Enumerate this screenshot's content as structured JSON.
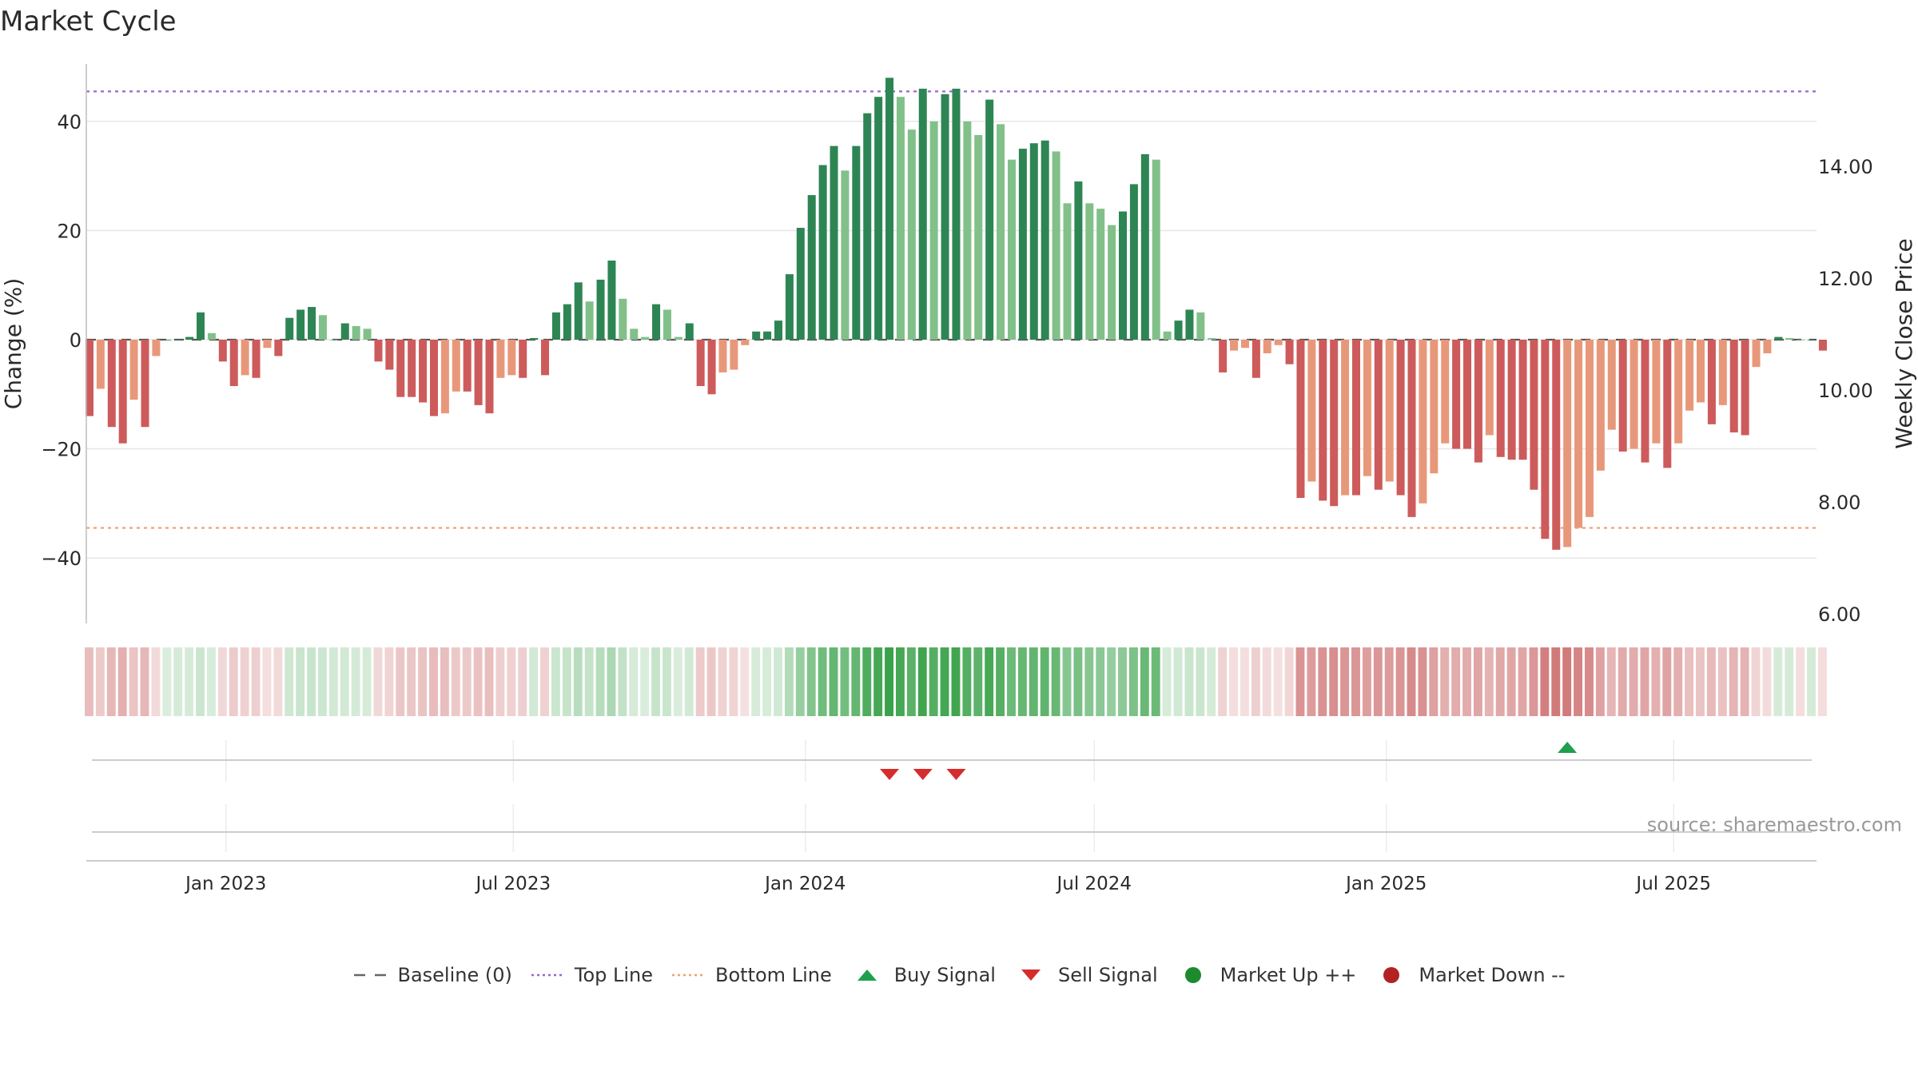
{
  "chart_data": {
    "type": "bar",
    "title": "Market Cycle",
    "ylabel": "Change (%)",
    "y2label": "Weekly Close Price",
    "ylim": [
      -52,
      52
    ],
    "y2lim": [
      6.0,
      16.0
    ],
    "y_ticks": [
      {
        "value": 40,
        "label": "40"
      },
      {
        "value": 20,
        "label": "20"
      },
      {
        "value": 0,
        "label": "0"
      },
      {
        "value": -20,
        "label": "−20"
      },
      {
        "value": -40,
        "label": "−40"
      }
    ],
    "y2_ticks": [
      {
        "value": 14.0,
        "label": "14.00"
      },
      {
        "value": 12.0,
        "label": "12.00"
      },
      {
        "value": 10.0,
        "label": "10.00"
      },
      {
        "value": 8.0,
        "label": "8.00"
      },
      {
        "value": 6.0,
        "label": "6.00"
      }
    ],
    "x_range": [
      "2022-10-05",
      "2025-09-29"
    ],
    "x_ticks": [
      {
        "date": "2023-01-01",
        "label": "Jan 2023"
      },
      {
        "date": "2023-07-01",
        "label": "Jul 2023"
      },
      {
        "date": "2024-01-01",
        "label": "Jan 2024"
      },
      {
        "date": "2024-07-01",
        "label": "Jul 2024"
      },
      {
        "date": "2025-01-01",
        "label": "Jan 2025"
      },
      {
        "date": "2025-07-01",
        "label": "Jul 2025"
      }
    ],
    "grid": true,
    "first_week": "2022-10-07",
    "values": [
      -14,
      -9,
      -16,
      -19,
      -11,
      -16,
      -3,
      0,
      0,
      0.5,
      5,
      1.2,
      -4,
      -8.5,
      -6.5,
      -7,
      -1.5,
      -3,
      4,
      5.5,
      6,
      4.5,
      0,
      3,
      2.5,
      2,
      -4,
      -5.5,
      -10.5,
      -10.5,
      -11.5,
      -14,
      -13.5,
      -9.5,
      -9.5,
      -12,
      -13.5,
      -7,
      -6.5,
      -7,
      0.3,
      -6.5,
      5,
      6.5,
      10.5,
      7,
      11,
      14.5,
      7.5,
      2,
      0.5,
      6.5,
      5.5,
      0.5,
      3,
      -8.5,
      -10,
      -6,
      -5.5,
      -1,
      1.5,
      1.5,
      3.5,
      12,
      20.5,
      26.5,
      32,
      35.5,
      31,
      35.5,
      41.5,
      44.5,
      48,
      44.5,
      38.5,
      46,
      40,
      45,
      46,
      40,
      37.5,
      44,
      39.5,
      33,
      35,
      36,
      36.5,
      34.5,
      25,
      29,
      25,
      24,
      21,
      23.5,
      28.5,
      34,
      33,
      1.5,
      3.5,
      5.5,
      5,
      0.3,
      -6,
      -2,
      -1.5,
      -7,
      -2.5,
      -1,
      -4.5,
      -29,
      -26,
      -29.5,
      -30.5,
      -28.5,
      -28.5,
      -25,
      -27.5,
      -26,
      -28.5,
      -32.5,
      -30,
      -24.5,
      -19,
      -20,
      -20,
      -22.5,
      -17.5,
      -21.5,
      -22,
      -22,
      -27.5,
      -36.5,
      -38.5,
      -38,
      -34.5,
      -32.5,
      -24,
      -16.5,
      -20.5,
      -20,
      -22.5,
      -19,
      -23.5,
      -19,
      -13,
      -11.5,
      -15.5,
      -12,
      -17,
      -17.5,
      -5,
      -2.5,
      0.5,
      0.3,
      0,
      0,
      -2
    ],
    "heat_values": [
      -14,
      -9,
      -16,
      -19,
      -11,
      -16,
      -3,
      0,
      2,
      2,
      5,
      1.2,
      -4,
      -8.5,
      -6.5,
      -7,
      -1.5,
      -3,
      4,
      5.5,
      6,
      4.5,
      3,
      3,
      2.5,
      2,
      -4,
      -5.5,
      -10.5,
      -10.5,
      -11.5,
      -14,
      -13.5,
      -9.5,
      -9.5,
      -12,
      -13.5,
      -7,
      -6.5,
      -7,
      3,
      -6.5,
      5,
      6.5,
      10.5,
      7,
      11,
      14.5,
      7.5,
      2,
      0.5,
      6.5,
      5.5,
      0.5,
      3,
      -8.5,
      -10,
      -6,
      -5.5,
      -1,
      1.5,
      1.5,
      3.5,
      12,
      20.5,
      26.5,
      32,
      35.5,
      31,
      35.5,
      41.5,
      44.5,
      48,
      44.5,
      38.5,
      46,
      40,
      45,
      46,
      40,
      37.5,
      44,
      39.5,
      33,
      35,
      36,
      36.5,
      34.5,
      25,
      29,
      25,
      24,
      21,
      23.5,
      28.5,
      34,
      33,
      1.5,
      3.5,
      5.5,
      5,
      2,
      -6,
      -2,
      -1.5,
      -7,
      -2.5,
      -1,
      -4.5,
      -29,
      -26,
      -29.5,
      -30.5,
      -28.5,
      -28.5,
      -25,
      -27.5,
      -26,
      -28.5,
      -32.5,
      -30,
      -24.5,
      -19,
      -20,
      -20,
      -22.5,
      -17.5,
      -21.5,
      -22,
      -22,
      -27.5,
      -36.5,
      -38.5,
      -38,
      -34.5,
      -32.5,
      -24,
      -16.5,
      -20.5,
      -20,
      -22.5,
      -19,
      -23.5,
      -19,
      -13,
      -11.5,
      -15.5,
      -12,
      -17,
      -17.5,
      -5,
      -2.5,
      2,
      2,
      -2,
      2,
      -2
    ],
    "reference_lines": [
      {
        "name": "Baseline (0)",
        "value": 0,
        "color": "#555555",
        "style": "dashed"
      },
      {
        "name": "Top Line",
        "value": 45.5,
        "color": "#9966cc",
        "style": "dotted"
      },
      {
        "name": "Bottom Line",
        "value": -34.5,
        "color": "#f0a070",
        "style": "dotted"
      }
    ],
    "buy_signals": [
      "2025-04-25"
    ],
    "sell_signals": [
      "2024-02-23",
      "2024-03-15",
      "2024-04-05"
    ],
    "market_up_markers": [],
    "market_down_markers": [],
    "colors": {
      "up_dark": "#2e8554",
      "up_light": "#82c08a",
      "down_dark": "#cd5b5b",
      "down_light": "#e8987a",
      "heat_up": "#3aa24a",
      "heat_down": "#c86060",
      "buy": "#1fa04e",
      "sell": "#d62c2c",
      "market_up": "#1e8a2e",
      "market_down": "#b22222"
    },
    "source": "source: sharemaestro.com",
    "legend": [
      {
        "label": "Baseline (0)",
        "symbol": "dash-line",
        "color": "#666666"
      },
      {
        "label": "Top Line",
        "symbol": "dot-line",
        "color": "#9966cc"
      },
      {
        "label": "Bottom Line",
        "symbol": "dot-line",
        "color": "#f0a070"
      },
      {
        "label": "Buy Signal",
        "symbol": "triangle-up",
        "color": "#1fa04e"
      },
      {
        "label": "Sell Signal",
        "symbol": "triangle-down",
        "color": "#d62c2c"
      },
      {
        "label": "Market Up ++",
        "symbol": "circle",
        "color": "#1e8a2e"
      },
      {
        "label": "Market Down --",
        "symbol": "circle",
        "color": "#b22222"
      }
    ]
  }
}
